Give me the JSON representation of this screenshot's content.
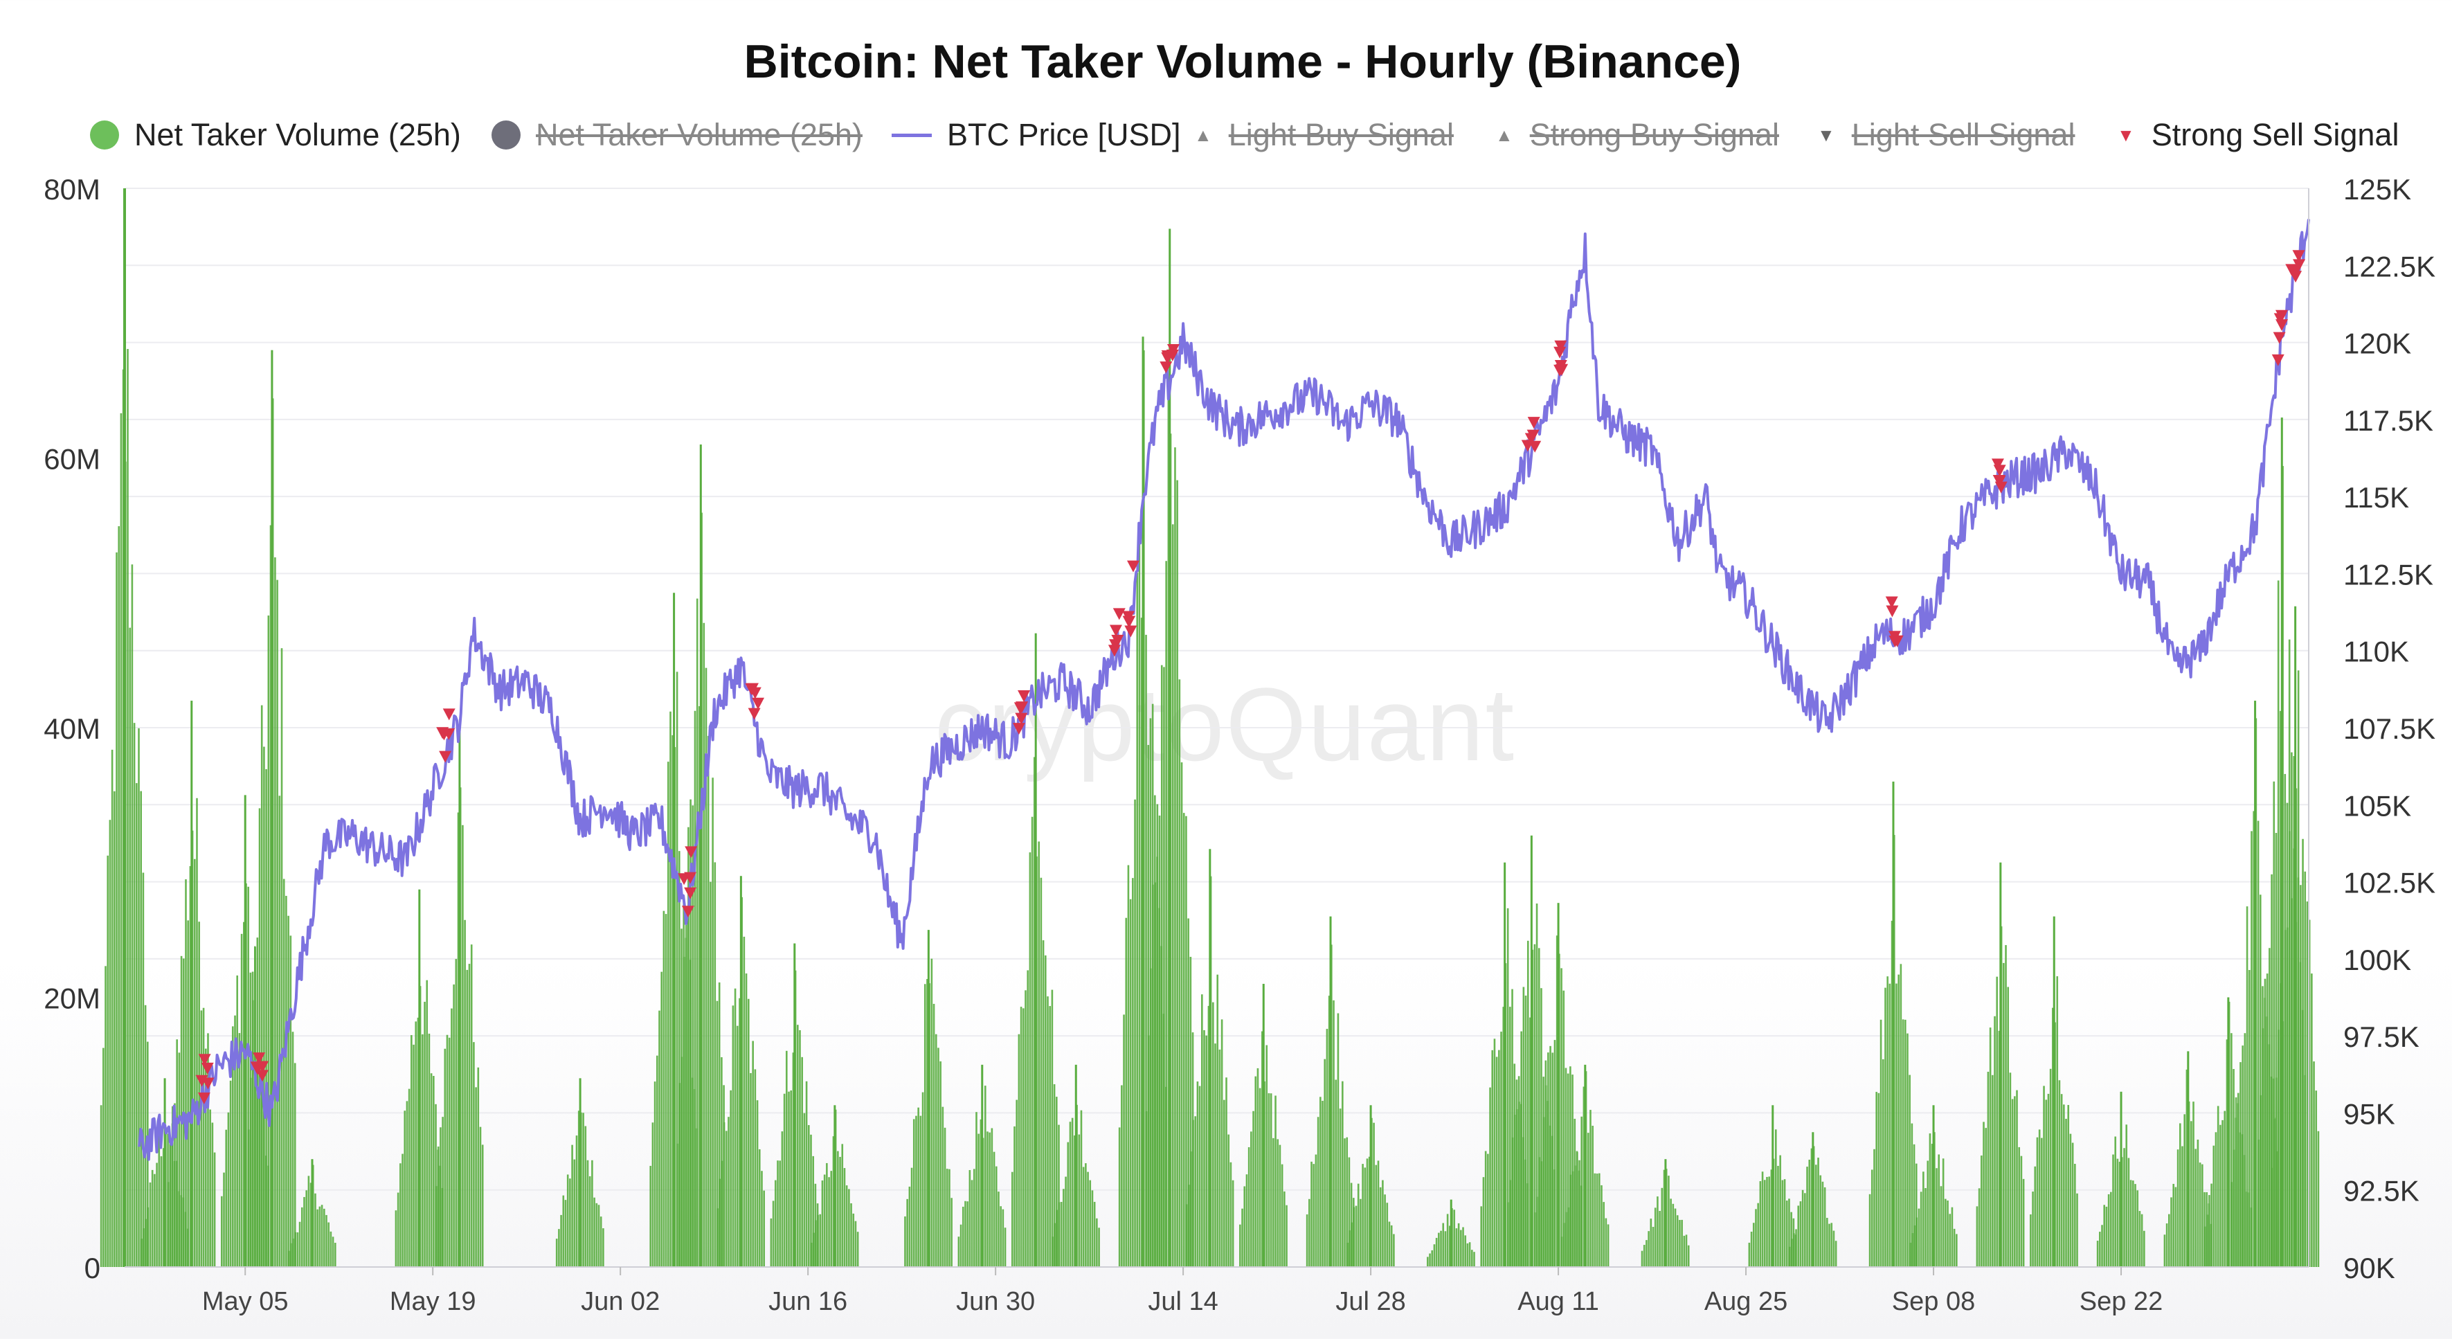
{
  "chart_data": {
    "type": "bar+line",
    "title": "Bitcoin: Net Taker Volume - Hourly (Binance)",
    "watermark": "cryptoQuant",
    "legend_placement": "top",
    "legend": [
      {
        "label": "Net Taker Volume (25h)",
        "marker": "dot",
        "color": "#6dbf5b",
        "enabled": true
      },
      {
        "label": "Net Taker Volume (25h)",
        "marker": "dot",
        "color": "#6e6e7a",
        "enabled": false
      },
      {
        "label": "BTC Price [USD]",
        "marker": "line",
        "color": "#7d73e0",
        "enabled": true
      },
      {
        "label": "Light Buy Signal",
        "marker": "triangle-up",
        "color": "#999999",
        "enabled": false
      },
      {
        "label": "Strong Buy Signal",
        "marker": "triangle-up",
        "color": "#999999",
        "enabled": false
      },
      {
        "label": "Light Sell Signal",
        "marker": "triangle-down",
        "color": "#777777",
        "enabled": false
      },
      {
        "label": "Strong Sell Signal",
        "marker": "triangle-down",
        "color": "#d9344a",
        "enabled": true
      }
    ],
    "x_ticks": [
      "May 05",
      "May 19",
      "Jun 02",
      "Jun 16",
      "Jun 30",
      "Jul 14",
      "Jul 28",
      "Aug 11",
      "Aug 25",
      "Sep 08",
      "Sep 22"
    ],
    "x_range": [
      "Apr 26",
      "Oct 06"
    ],
    "y_left": {
      "ticks": [
        "0",
        "20M",
        "40M",
        "60M",
        "80M"
      ],
      "range": [
        0,
        80000000
      ]
    },
    "y_right": {
      "ticks": [
        "90K",
        "92.5K",
        "95K",
        "97.5K",
        "100K",
        "102.5K",
        "105K",
        "107.5K",
        "110K",
        "112.5K",
        "115K",
        "117.5K",
        "120K",
        "122.5K",
        "125K"
      ],
      "range": [
        90000,
        125000
      ]
    },
    "grid": true,
    "colors": {
      "volume": "#59ad3f",
      "price": "#7d73e0",
      "sell_signal": "#d9344a"
    },
    "price_series": {
      "name": "BTC Price [USD]",
      "x": [
        "Apr 27",
        "Apr 29",
        "May 01",
        "May 03",
        "May 05",
        "May 07",
        "May 09",
        "May 11",
        "May 13",
        "May 15",
        "May 17",
        "May 19",
        "May 21",
        "May 22",
        "May 24",
        "May 26",
        "May 28",
        "May 30",
        "Jun 01",
        "Jun 03",
        "Jun 05",
        "Jun 07",
        "Jun 09",
        "Jun 11",
        "Jun 13",
        "Jun 15",
        "Jun 17",
        "Jun 19",
        "Jun 21",
        "Jun 22",
        "Jun 23",
        "Jun 25",
        "Jun 27",
        "Jun 29",
        "Jul 01",
        "Jul 03",
        "Jul 05",
        "Jul 07",
        "Jul 09",
        "Jul 10",
        "Jul 11",
        "Jul 12",
        "Jul 14",
        "Jul 16",
        "Jul 18",
        "Jul 20",
        "Jul 22",
        "Jul 24",
        "Jul 26",
        "Jul 28",
        "Jul 30",
        "Aug 01",
        "Aug 03",
        "Aug 05",
        "Aug 07",
        "Aug 09",
        "Aug 11",
        "Aug 12",
        "Aug 13",
        "Aug 14",
        "Aug 16",
        "Aug 18",
        "Aug 20",
        "Aug 22",
        "Aug 23",
        "Aug 25",
        "Aug 27",
        "Aug 29",
        "Aug 31",
        "Sep 02",
        "Sep 04",
        "Sep 06",
        "Sep 08",
        "Sep 10",
        "Sep 12",
        "Sep 14",
        "Sep 16",
        "Sep 18",
        "Sep 20",
        "Sep 22",
        "Sep 24",
        "Sep 26",
        "Sep 28",
        "Sep 30",
        "Oct 02",
        "Oct 04",
        "Oct 06"
      ],
      "values": [
        93800,
        94500,
        94800,
        96500,
        97000,
        95000,
        99500,
        103800,
        104000,
        103500,
        103200,
        105500,
        107800,
        110600,
        108700,
        109000,
        108000,
        104500,
        105000,
        104000,
        104500,
        101500,
        108000,
        109500,
        106000,
        105500,
        105600,
        104600,
        104000,
        102000,
        100600,
        106300,
        106900,
        107500,
        107000,
        108500,
        109000,
        108100,
        110000,
        110500,
        115000,
        117600,
        120000,
        118000,
        117200,
        117600,
        118000,
        118300,
        117300,
        118000,
        117500,
        115000,
        113500,
        114000,
        114600,
        116500,
        118600,
        121200,
        123000,
        118000,
        117000,
        116500,
        113500,
        115000,
        112500,
        111800,
        110200,
        108700,
        107600,
        109000,
        110500,
        110500,
        111500,
        114000,
        115000,
        115600,
        115800,
        116500,
        115400,
        112500,
        112200,
        109400,
        110000,
        112400,
        114000,
        120200,
        124000
      ]
    },
    "volume_series": {
      "name": "Net Taker Volume (25h)",
      "clusters": [
        {
          "date": "Apr 26",
          "peak": 80000000
        },
        {
          "date": "Apr 29",
          "peak": 14000000
        },
        {
          "date": "May 01",
          "peak": 42000000
        },
        {
          "date": "May 05",
          "peak": 35000000
        },
        {
          "date": "May 07",
          "peak": 68000000
        },
        {
          "date": "May 10",
          "peak": 8000000
        },
        {
          "date": "May 18",
          "peak": 28000000
        },
        {
          "date": "May 21",
          "peak": 40000000
        },
        {
          "date": "May 30",
          "peak": 14000000
        },
        {
          "date": "Jun 06",
          "peak": 50000000
        },
        {
          "date": "Jun 08",
          "peak": 61000000
        },
        {
          "date": "Jun 11",
          "peak": 29000000
        },
        {
          "date": "Jun 15",
          "peak": 24000000
        },
        {
          "date": "Jun 18",
          "peak": 12000000
        },
        {
          "date": "Jun 25",
          "peak": 25000000
        },
        {
          "date": "Jun 29",
          "peak": 15000000
        },
        {
          "date": "Jul 03",
          "peak": 47000000
        },
        {
          "date": "Jul 06",
          "peak": 15000000
        },
        {
          "date": "Jul 11",
          "peak": 69000000
        },
        {
          "date": "Jul 13",
          "peak": 77000000
        },
        {
          "date": "Jul 16",
          "peak": 31000000
        },
        {
          "date": "Jul 20",
          "peak": 21000000
        },
        {
          "date": "Jul 25",
          "peak": 26000000
        },
        {
          "date": "Jul 28",
          "peak": 12000000
        },
        {
          "date": "Aug 03",
          "peak": 5000000
        },
        {
          "date": "Aug 07",
          "peak": 30000000
        },
        {
          "date": "Aug 09",
          "peak": 32000000
        },
        {
          "date": "Aug 11",
          "peak": 27000000
        },
        {
          "date": "Aug 13",
          "peak": 15000000
        },
        {
          "date": "Aug 19",
          "peak": 8000000
        },
        {
          "date": "Aug 27",
          "peak": 12000000
        },
        {
          "date": "Aug 30",
          "peak": 10000000
        },
        {
          "date": "Sep 05",
          "peak": 36000000
        },
        {
          "date": "Sep 08",
          "peak": 12000000
        },
        {
          "date": "Sep 13",
          "peak": 30000000
        },
        {
          "date": "Sep 17",
          "peak": 26000000
        },
        {
          "date": "Sep 22",
          "peak": 13000000
        },
        {
          "date": "Sep 27",
          "peak": 16000000
        },
        {
          "date": "Sep 30",
          "peak": 20000000
        },
        {
          "date": "Oct 02",
          "peak": 42000000
        },
        {
          "date": "Oct 04",
          "peak": 63000000
        },
        {
          "date": "Oct 05",
          "peak": 49000000
        }
      ]
    },
    "sell_signals": [
      "May 02",
      "May 06",
      "May 20",
      "Jun 07",
      "Jun 12",
      "Jul 02",
      "Jul 09",
      "Jul 10",
      "Jul 13",
      "Aug 09",
      "Aug 11",
      "Sep 05",
      "Sep 13",
      "Oct 04",
      "Oct 05"
    ]
  }
}
